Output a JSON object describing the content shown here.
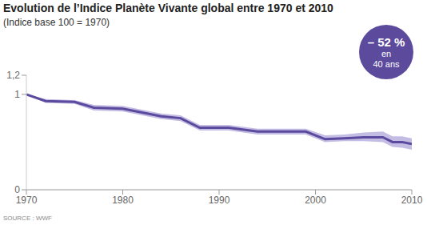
{
  "chart_data": {
    "type": "line",
    "title": "Evolution de l’Indice Planète Vivante global entre 1970 et 2010",
    "subtitle": "(Indice base 100 = 1970)",
    "source": "SOURCE : WWF",
    "x": [
      1970,
      1972,
      1975,
      1977,
      1980,
      1984,
      1986,
      1988,
      1991,
      1994,
      1999,
      2001,
      2003,
      2005,
      2007,
      2008,
      2009,
      2010
    ],
    "values": [
      1.0,
      0.93,
      0.92,
      0.86,
      0.85,
      0.77,
      0.75,
      0.65,
      0.65,
      0.61,
      0.61,
      0.53,
      0.54,
      0.55,
      0.55,
      0.5,
      0.5,
      0.48
    ],
    "color": "#5b4a9e",
    "interval": {
      "lower": [
        1.0,
        0.91,
        0.9,
        0.83,
        0.82,
        0.74,
        0.72,
        0.62,
        0.62,
        0.58,
        0.58,
        0.5,
        0.51,
        0.51,
        0.5,
        0.45,
        0.44,
        0.42
      ],
      "upper": [
        1.0,
        0.95,
        0.94,
        0.89,
        0.88,
        0.8,
        0.78,
        0.68,
        0.68,
        0.64,
        0.64,
        0.57,
        0.58,
        0.6,
        0.61,
        0.56,
        0.56,
        0.54
      ],
      "color": "#c4bde3"
    },
    "xlim": [
      1970,
      2010
    ],
    "xticks": [
      1970,
      1980,
      1990,
      2000,
      2010
    ],
    "ylim": [
      0,
      1.2
    ],
    "yticks": [
      0,
      1,
      {
        "value": 1.2,
        "label": "1,2"
      }
    ],
    "grid": false,
    "annotation": {
      "lines": [
        "– 52 %",
        "en",
        "40 ans"
      ],
      "color": "#5c4a9d"
    }
  }
}
